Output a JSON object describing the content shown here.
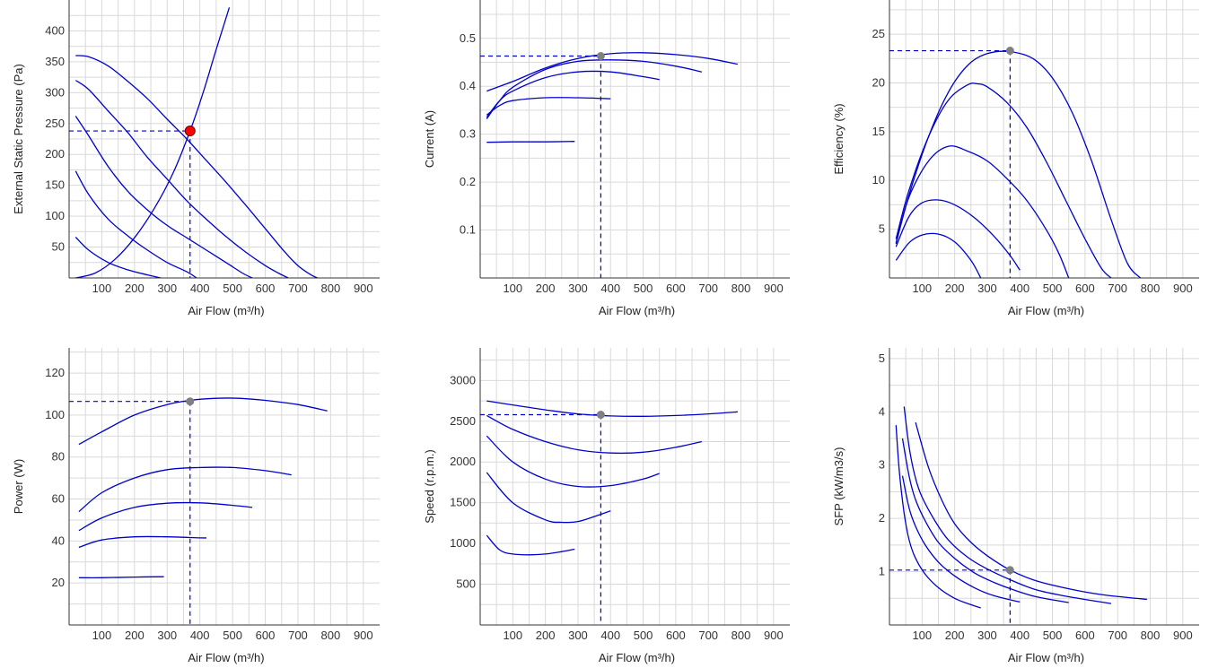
{
  "accent_color": "#0000cc",
  "marker_colors": {
    "gray": "#808080",
    "red": "#ff0000"
  },
  "chart_data": [
    {
      "type": "line",
      "xlabel": "Air Flow (m³/h)",
      "ylabel": "External Static Pressure (Pa)",
      "xlim": [
        0,
        950
      ],
      "ylim": [
        0,
        450
      ],
      "xticks": [
        100,
        200,
        300,
        400,
        500,
        600,
        700,
        800,
        900
      ],
      "yticks": [
        50,
        100,
        150,
        200,
        250,
        300,
        350,
        400
      ],
      "series": [
        {
          "x": [
            20,
            60,
            120,
            180,
            240,
            300,
            360,
            420,
            480,
            540,
            600,
            660,
            700,
            740,
            760
          ],
          "y": [
            360,
            358,
            343,
            318,
            290,
            257,
            225,
            190,
            155,
            118,
            80,
            42,
            20,
            5,
            0
          ]
        },
        {
          "x": [
            20,
            60,
            120,
            180,
            240,
            300,
            360,
            420,
            480,
            540,
            600,
            640,
            670
          ],
          "y": [
            320,
            305,
            270,
            235,
            195,
            160,
            125,
            95,
            67,
            42,
            20,
            8,
            0
          ]
        },
        {
          "x": [
            20,
            60,
            120,
            180,
            240,
            300,
            360,
            420,
            480,
            530,
            560
          ],
          "y": [
            262,
            230,
            180,
            140,
            110,
            85,
            65,
            45,
            25,
            8,
            0
          ]
        },
        {
          "x": [
            20,
            60,
            120,
            180,
            240,
            300,
            360,
            390
          ],
          "y": [
            173,
            135,
            95,
            68,
            45,
            25,
            10,
            0
          ]
        },
        {
          "x": [
            20,
            60,
            120,
            180,
            240,
            280
          ],
          "y": [
            66,
            45,
            25,
            13,
            5,
            0
          ]
        },
        {
          "x": [
            20,
            80,
            140,
            200,
            260,
            320,
            370,
            410,
            450,
            490
          ],
          "y": [
            0,
            8,
            30,
            65,
            112,
            172,
            238,
            300,
            370,
            438
          ]
        }
      ],
      "operating_point": {
        "x": 370,
        "y": 238,
        "color": "red"
      }
    },
    {
      "type": "line",
      "xlabel": "Air Flow (m³/h)",
      "ylabel": "Current (A)",
      "xlim": [
        0,
        950
      ],
      "ylim": [
        0,
        0.58
      ],
      "xticks": [
        100,
        200,
        300,
        400,
        500,
        600,
        700,
        800,
        900
      ],
      "yticks": [
        0.1,
        0.2,
        0.3,
        0.4,
        0.5
      ],
      "series": [
        {
          "x": [
            20,
            100,
            200,
            300,
            400,
            500,
            600,
            700,
            790
          ],
          "y": [
            0.39,
            0.41,
            0.438,
            0.458,
            0.468,
            0.47,
            0.466,
            0.458,
            0.446
          ]
        },
        {
          "x": [
            20,
            60,
            100,
            200,
            300,
            400,
            500,
            600,
            680
          ],
          "y": [
            0.332,
            0.37,
            0.398,
            0.435,
            0.452,
            0.455,
            0.452,
            0.442,
            0.43
          ]
        },
        {
          "x": [
            20,
            60,
            100,
            200,
            300,
            400,
            500,
            550
          ],
          "y": [
            0.335,
            0.37,
            0.39,
            0.418,
            0.43,
            0.43,
            0.42,
            0.414
          ]
        },
        {
          "x": [
            20,
            60,
            100,
            200,
            300,
            400
          ],
          "y": [
            0.34,
            0.36,
            0.37,
            0.376,
            0.376,
            0.374
          ]
        },
        {
          "x": [
            20,
            100,
            200,
            290
          ],
          "y": [
            0.283,
            0.284,
            0.284,
            0.285
          ]
        }
      ],
      "operating_point": {
        "x": 370,
        "y": 0.463,
        "color": "gray"
      }
    },
    {
      "type": "line",
      "xlabel": "Air Flow (m³/h)",
      "ylabel": "Efficiency (%)",
      "xlim": [
        0,
        950
      ],
      "ylim": [
        0,
        28.5
      ],
      "xticks": [
        100,
        200,
        300,
        400,
        500,
        600,
        700,
        800,
        900
      ],
      "yticks": [
        5,
        10,
        15,
        20,
        25
      ],
      "series": [
        {
          "x": [
            20,
            60,
            120,
            180,
            240,
            300,
            370,
            440,
            500,
            560,
            620,
            680,
            730,
            770
          ],
          "y": [
            3.5,
            8.5,
            14.5,
            19,
            21.8,
            23,
            23.2,
            22.5,
            20.5,
            17,
            12,
            6,
            1.5,
            0
          ]
        },
        {
          "x": [
            20,
            60,
            120,
            180,
            240,
            270,
            300,
            360,
            420,
            480,
            540,
            600,
            650,
            680
          ],
          "y": [
            4,
            9,
            14.5,
            18.2,
            19.8,
            19.9,
            19.6,
            18,
            15.5,
            12,
            8,
            4,
            1,
            0
          ]
        },
        {
          "x": [
            20,
            60,
            120,
            180,
            240,
            300,
            360,
            420,
            480,
            520,
            550
          ],
          "y": [
            3.6,
            8.3,
            12,
            13.5,
            13,
            12,
            10.2,
            8,
            5,
            2.5,
            0
          ]
        },
        {
          "x": [
            20,
            60,
            100,
            150,
            200,
            260,
            320,
            370,
            400
          ],
          "y": [
            3.2,
            6.3,
            7.7,
            8,
            7.5,
            6.2,
            4.3,
            2.3,
            0.8
          ]
        },
        {
          "x": [
            20,
            60,
            100,
            150,
            200,
            250,
            280
          ],
          "y": [
            1.8,
            3.6,
            4.4,
            4.5,
            3.7,
            1.8,
            0
          ]
        }
      ],
      "operating_point": {
        "x": 370,
        "y": 23.3,
        "color": "gray"
      }
    },
    {
      "type": "line",
      "xlabel": "Air Flow (m³/h)",
      "ylabel": "Power (W)",
      "xlim": [
        0,
        950
      ],
      "ylim": [
        0,
        132
      ],
      "xticks": [
        100,
        200,
        300,
        400,
        500,
        600,
        700,
        800,
        900
      ],
      "yticks": [
        20,
        40,
        60,
        80,
        100,
        120
      ],
      "series": [
        {
          "x": [
            30,
            100,
            200,
            300,
            370,
            450,
            520,
            600,
            700,
            790
          ],
          "y": [
            86,
            92,
            100,
            105,
            107,
            108,
            108,
            107,
            105,
            102
          ]
        },
        {
          "x": [
            30,
            100,
            200,
            300,
            400,
            500,
            600,
            680
          ],
          "y": [
            54,
            63,
            70,
            74,
            75,
            75,
            73.5,
            71.5
          ]
        },
        {
          "x": [
            30,
            100,
            200,
            300,
            400,
            500,
            560
          ],
          "y": [
            45,
            51,
            56,
            58,
            58.2,
            57,
            56
          ]
        },
        {
          "x": [
            30,
            100,
            200,
            300,
            400,
            420
          ],
          "y": [
            37,
            40.5,
            42,
            42,
            41.5,
            41.5
          ]
        },
        {
          "x": [
            30,
            100,
            200,
            290
          ],
          "y": [
            22.5,
            22.5,
            22.8,
            23
          ]
        }
      ],
      "operating_point": {
        "x": 370,
        "y": 106.5,
        "color": "gray"
      }
    },
    {
      "type": "line",
      "xlabel": "Air Flow (m³/h)",
      "ylabel": "Speed (r.p.m.)",
      "xlim": [
        0,
        950
      ],
      "ylim": [
        0,
        3400
      ],
      "xticks": [
        100,
        200,
        300,
        400,
        500,
        600,
        700,
        800,
        900
      ],
      "yticks": [
        500,
        1000,
        1500,
        2000,
        2500,
        3000
      ],
      "series": [
        {
          "x": [
            20,
            100,
            200,
            300,
            400,
            500,
            600,
            700,
            790
          ],
          "y": [
            2750,
            2700,
            2640,
            2590,
            2565,
            2560,
            2570,
            2590,
            2615
          ]
        },
        {
          "x": [
            20,
            100,
            200,
            300,
            400,
            500,
            600,
            680
          ],
          "y": [
            2570,
            2400,
            2250,
            2150,
            2110,
            2120,
            2180,
            2250
          ]
        },
        {
          "x": [
            20,
            100,
            200,
            300,
            400,
            500,
            550
          ],
          "y": [
            2320,
            2000,
            1790,
            1700,
            1710,
            1790,
            1860
          ]
        },
        {
          "x": [
            20,
            100,
            200,
            250,
            300,
            350,
            400
          ],
          "y": [
            1870,
            1500,
            1290,
            1260,
            1270,
            1330,
            1400
          ]
        },
        {
          "x": [
            20,
            60,
            100,
            150,
            200,
            250,
            290
          ],
          "y": [
            1100,
            920,
            870,
            860,
            870,
            900,
            930
          ]
        }
      ],
      "operating_point": {
        "x": 370,
        "y": 2580,
        "color": "gray"
      }
    },
    {
      "type": "line",
      "xlabel": "Air Flow (m³/h)",
      "ylabel": "SFP (kW/m3/s)",
      "xlim": [
        0,
        950
      ],
      "ylim": [
        0,
        5.2
      ],
      "xticks": [
        100,
        200,
        300,
        400,
        500,
        600,
        700,
        800,
        900
      ],
      "yticks": [
        1,
        2,
        3,
        4,
        5
      ],
      "series": [
        {
          "x": [
            80,
            120,
            160,
            200,
            250,
            300,
            370,
            450,
            550,
            650,
            790
          ],
          "y": [
            3.8,
            2.95,
            2.35,
            1.9,
            1.55,
            1.3,
            1.03,
            0.83,
            0.68,
            0.57,
            0.48
          ]
        },
        {
          "x": [
            45,
            60,
            80,
            100,
            140,
            180,
            240,
            300,
            370,
            450,
            550,
            680
          ],
          "y": [
            4.1,
            3.35,
            2.75,
            2.4,
            1.95,
            1.6,
            1.27,
            1.05,
            0.85,
            0.66,
            0.53,
            0.4
          ]
        },
        {
          "x": [
            40,
            60,
            80,
            110,
            150,
            200,
            260,
            320,
            380,
            450,
            550
          ],
          "y": [
            3.5,
            2.8,
            2.35,
            1.95,
            1.55,
            1.25,
            0.98,
            0.8,
            0.66,
            0.53,
            0.42
          ]
        },
        {
          "x": [
            40,
            60,
            80,
            110,
            150,
            200,
            260,
            320,
            400
          ],
          "y": [
            2.8,
            2.2,
            1.85,
            1.5,
            1.18,
            0.92,
            0.7,
            0.55,
            0.43
          ]
        },
        {
          "x": [
            20,
            30,
            45,
            60,
            80,
            110,
            150,
            200,
            250,
            280
          ],
          "y": [
            3.75,
            2.9,
            2.1,
            1.6,
            1.25,
            0.95,
            0.7,
            0.5,
            0.38,
            0.32
          ]
        }
      ],
      "operating_point": {
        "x": 370,
        "y": 1.03,
        "color": "gray"
      }
    }
  ]
}
